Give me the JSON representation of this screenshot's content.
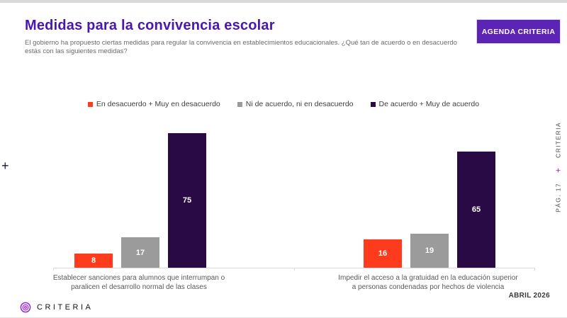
{
  "header": {
    "title": "Medidas para la convivencia escolar",
    "subtitle": "El gobierno ha propuesto ciertas medidas para regular la convivencia en establecimientos educacionales. ¿Qué tan de acuerdo o en desacuerdo estás con las siguientes medidas?",
    "agenda_button": "AGENDA CRITERIA"
  },
  "colors": {
    "title_purple": "#4a17ae",
    "button_purple": "#5b24b4",
    "disagree_red": "#fe3b1c",
    "neutral_gray": "#9b9b9b",
    "agree_dark_purple": "#2a0a45"
  },
  "chart_data": {
    "type": "bar",
    "categories": [
      "Establecer sanciones para alumnos que interrumpan o paralicen el desarrollo normal de las clases",
      "Impedir el acceso a la gratuidad en la educación superior a personas condenadas por hechos de violencia"
    ],
    "series": [
      {
        "name": "En desacuerdo + Muy en desacuerdo",
        "color": "#fe3b1c",
        "values": [
          8,
          16
        ]
      },
      {
        "name": "Ni de acuerdo, ni en desacuerdo",
        "color": "#9b9b9b",
        "values": [
          17,
          19
        ]
      },
      {
        "name": "De acuerdo + Muy de acuerdo",
        "color": "#2a0a45",
        "values": [
          75,
          65
        ]
      }
    ],
    "ylim": [
      0,
      100
    ],
    "grid": false,
    "legend_position": "top",
    "value_labels": "inside-white"
  },
  "side": {
    "left_plus": "+",
    "right_bottom": "PÁG. 17",
    "right_plus": "+",
    "right_top": "CRITERIA"
  },
  "footer": {
    "brand": "CRITERIA",
    "date": "ABRIL 2026"
  }
}
